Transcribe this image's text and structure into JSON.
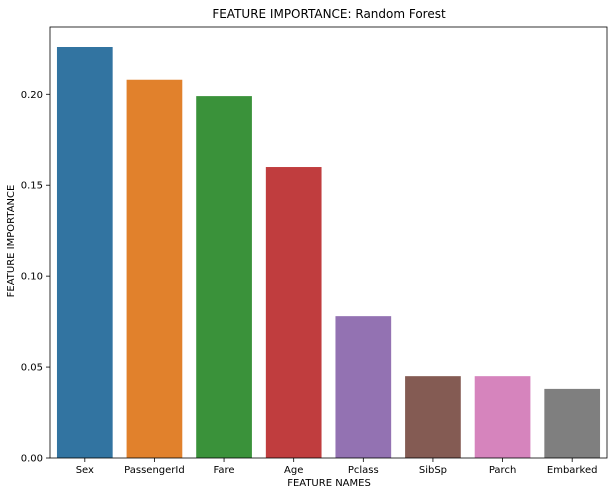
{
  "chart_data": {
    "type": "bar",
    "title": "FEATURE IMPORTANCE: Random Forest",
    "xlabel": "FEATURE NAMES",
    "ylabel": "FEATURE IMPORTANCE",
    "categories": [
      "Sex",
      "PassengerId",
      "Fare",
      "Age",
      "Pclass",
      "SibSp",
      "Parch",
      "Embarked"
    ],
    "values": [
      0.226,
      0.208,
      0.199,
      0.16,
      0.078,
      0.045,
      0.045,
      0.038
    ],
    "colors": [
      "#3274a1",
      "#e1812c",
      "#3a923a",
      "#c03d3e",
      "#9372b2",
      "#845b53",
      "#d684bd",
      "#7f7f7f"
    ],
    "yticks": [
      "0.00",
      "0.05",
      "0.10",
      "0.15",
      "0.20"
    ],
    "ylim": [
      0,
      0.237
    ],
    "grid": false,
    "legend": "none"
  }
}
